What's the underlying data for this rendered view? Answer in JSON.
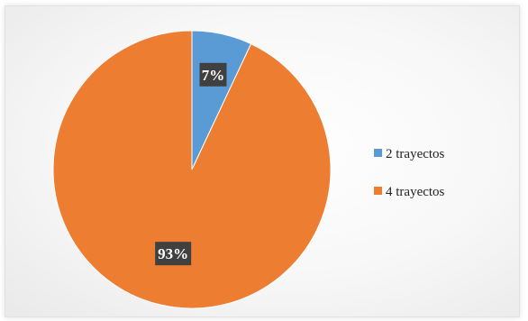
{
  "chart_data": {
    "type": "pie",
    "categories": [
      "2 trayectos",
      "4 trayectos"
    ],
    "values": [
      7,
      93
    ],
    "data_labels": [
      "7%",
      "93%"
    ],
    "colors": [
      "#5b9bd5",
      "#ed7d31"
    ],
    "label_box_color": "#404040",
    "legend_position": "right"
  }
}
